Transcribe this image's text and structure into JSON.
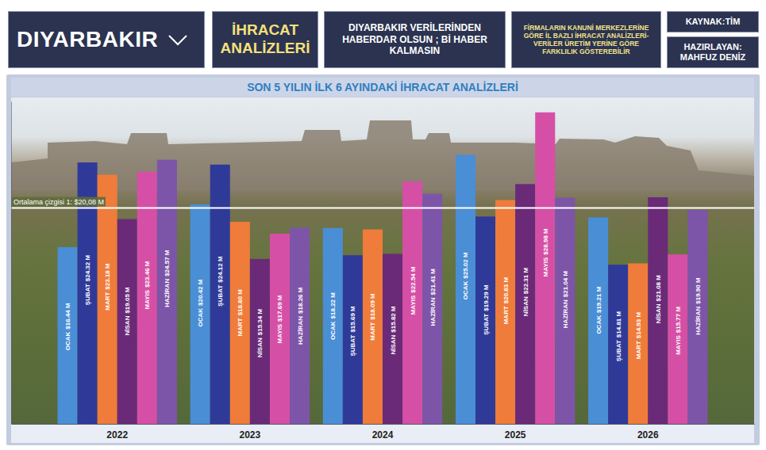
{
  "header": {
    "city": "DIYARBAKIR",
    "title": "İHRACAT ANALİZLERİ",
    "slogan": "DIYARBAKIR VERİLERİNDEN HABERDAR OLSUN ; Bİ HABER KALMASIN",
    "note": "FİRMALARIN KANUNİ MERKEZLERİNE GÖRE İL BAZLI İHRACAT ANALİZLERİ- VERİLER ÜRETİM YERİNE GÖRE FARKLILIK GÖSTEREBİLİR",
    "source": "KAYNAK:TİM",
    "author": "HAZIRLAYAN: MAHFUZ DENİZ"
  },
  "chart_data": {
    "type": "bar",
    "title": "SON 5 YILIN İLK 6 AYINDAKİ İHRACAT ANALİZLERİ",
    "categories": [
      "2022",
      "2023",
      "2024",
      "2025",
      "2026"
    ],
    "series": [
      {
        "name": "OCAK",
        "color": "#4a8ed6",
        "values": [
          16.44,
          20.42,
          18.22,
          25.02,
          19.21
        ],
        "value_labels": [
          "$16.44 M",
          "$20.42 M",
          "$18.22 M",
          "$25.02 M",
          "$19.21 M"
        ]
      },
      {
        "name": "ŞUBAT",
        "color": "#2f3a98",
        "values": [
          24.32,
          24.12,
          15.69,
          19.29,
          14.81
        ],
        "value_labels": [
          "$24.32 M",
          "$24.12 M",
          "$15.69 M",
          "$19.29 M",
          "$14.81 M"
        ]
      },
      {
        "name": "MART",
        "color": "#ef7c3a",
        "values": [
          23.18,
          18.8,
          18.09,
          20.83,
          14.93
        ],
        "value_labels": [
          "$23.18 M",
          "$18.80 M",
          "$18.09 M",
          "$20.83 M",
          "$14.93 M"
        ]
      },
      {
        "name": "NİSAN",
        "color": "#6a2a78",
        "values": [
          19.05,
          15.34,
          15.82,
          22.31,
          21.08
        ],
        "value_labels": [
          "$19.05 M",
          "$15.34 M",
          "$15.82 M",
          "$22.31 M",
          "$21.08 M"
        ]
      },
      {
        "name": "MAYIS",
        "color": "#d64fa6",
        "values": [
          23.46,
          17.69,
          22.54,
          28.98,
          15.77
        ],
        "value_labels": [
          "$23.46 M",
          "$17.69 M",
          "$22.54 M",
          "$28.98 M",
          "$15.77 M"
        ]
      },
      {
        "name": "HAZİRAN",
        "color": "#7d55a8",
        "values": [
          24.57,
          18.26,
          21.41,
          21.04,
          19.9
        ],
        "value_labels": [
          "$24.57 M",
          "$18.26 M",
          "$21.41 M",
          "$21.04 M",
          "$19.90 M"
        ]
      }
    ],
    "ylim": [
      0,
      30
    ],
    "tick_labels": "x",
    "data_labels": true,
    "annotations": [
      {
        "text": "Ortalama çizgisi 1: $20,08 M",
        "value": 20.08
      }
    ]
  }
}
